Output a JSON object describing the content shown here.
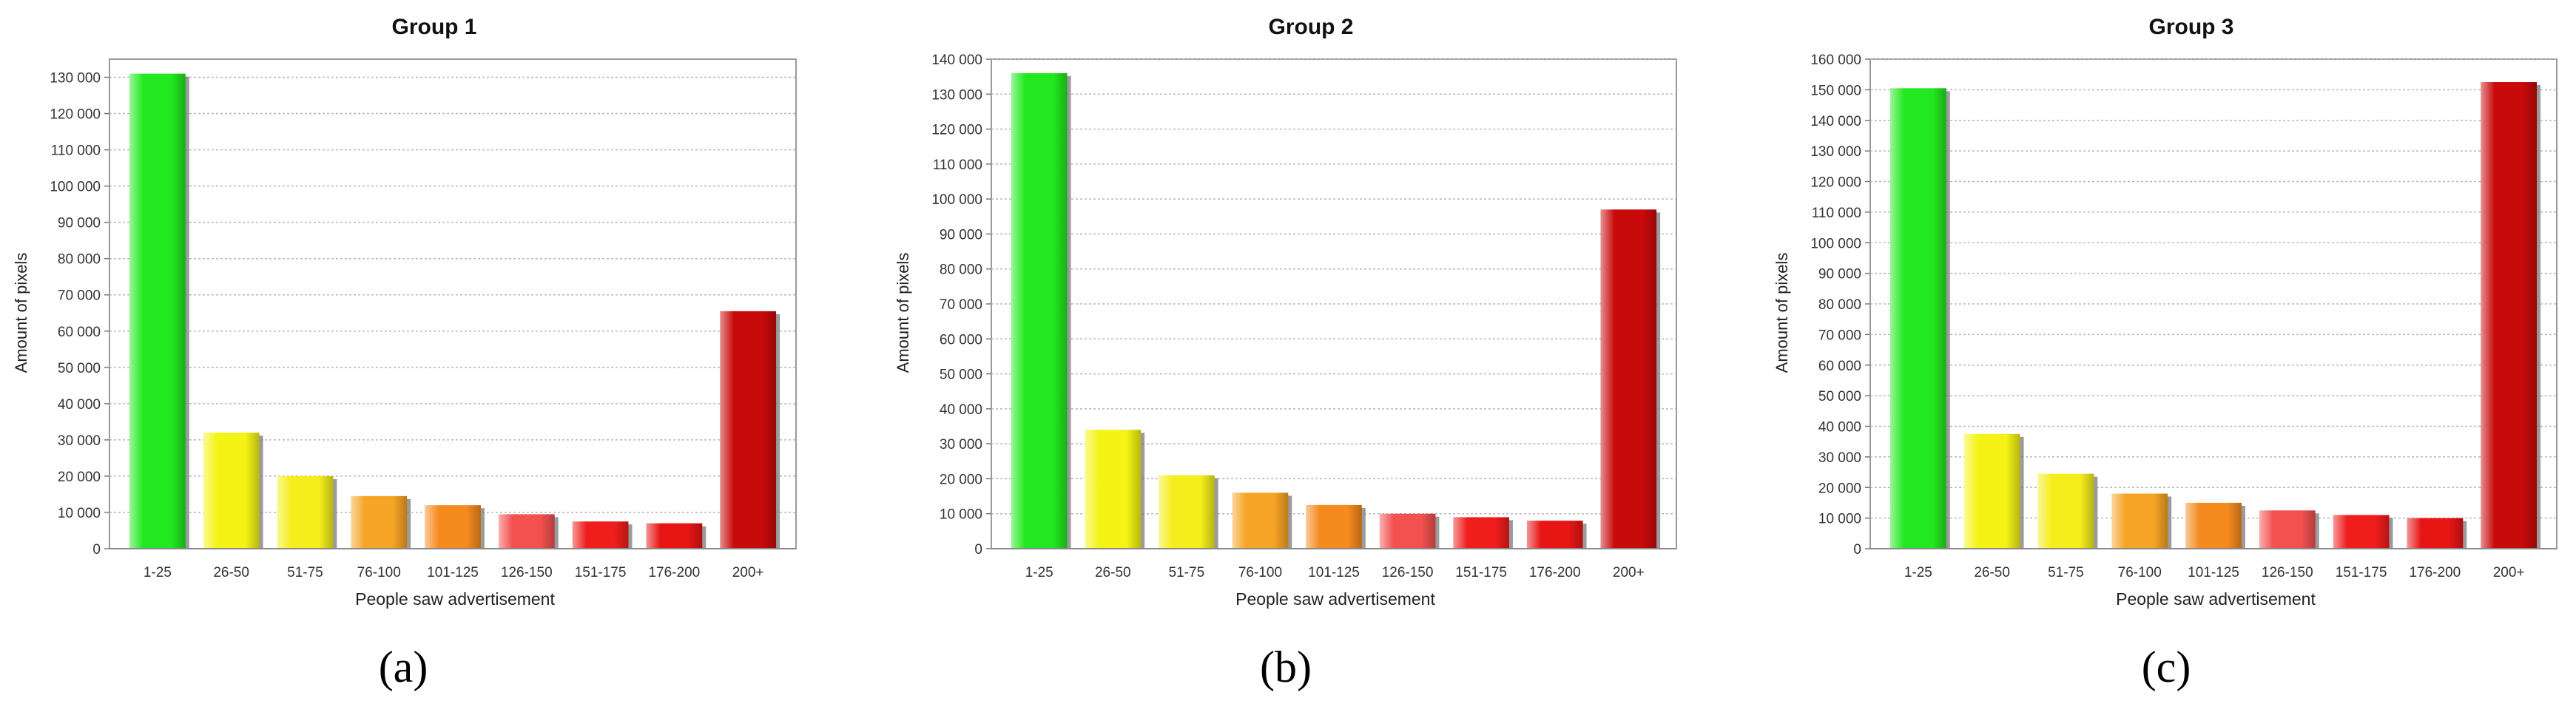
{
  "shared": {
    "xlabel": "People saw advertisement",
    "ylabel": "Amount of pixels",
    "categories": [
      "1-25",
      "26-50",
      "51-75",
      "76-100",
      "101-125",
      "126-150",
      "151-175",
      "176-200",
      "200+"
    ],
    "bar_colors": [
      "#22e81f",
      "#f5f315",
      "#f5ee1c",
      "#f6a425",
      "#f58a1f",
      "#f35050",
      "#f01d1d",
      "#e81515",
      "#c80a0a"
    ]
  },
  "chart_data": [
    {
      "type": "bar",
      "title": "Group 1",
      "caption": "(a)",
      "categories": [
        "1-25",
        "26-50",
        "51-75",
        "76-100",
        "101-125",
        "126-150",
        "151-175",
        "176-200",
        "200+"
      ],
      "values": [
        131000,
        32000,
        20000,
        14500,
        12000,
        9500,
        7500,
        7000,
        65500
      ],
      "ylim": [
        0,
        135000
      ],
      "yticks": [
        0,
        10000,
        20000,
        30000,
        40000,
        50000,
        60000,
        70000,
        80000,
        90000,
        100000,
        110000,
        120000,
        130000
      ],
      "ytick_labels": [
        "0",
        "10 000",
        "20 000",
        "30 000",
        "40 000",
        "50 000",
        "60 000",
        "70 000",
        "80 000",
        "90 000",
        "100 000",
        "110 000",
        "120 000",
        "130 000"
      ],
      "xlabel": "People saw advertisement",
      "ylabel": "Amount of pixels",
      "grid": true
    },
    {
      "type": "bar",
      "title": "Group 2",
      "caption": "(b)",
      "categories": [
        "1-25",
        "26-50",
        "51-75",
        "76-100",
        "101-125",
        "126-150",
        "151-175",
        "176-200",
        "200+"
      ],
      "values": [
        136000,
        34000,
        21000,
        16000,
        12500,
        10000,
        9000,
        8000,
        97000
      ],
      "ylim": [
        0,
        140000
      ],
      "yticks": [
        0,
        10000,
        20000,
        30000,
        40000,
        50000,
        60000,
        70000,
        80000,
        90000,
        100000,
        110000,
        120000,
        130000,
        140000
      ],
      "ytick_labels": [
        "0",
        "10 000",
        "20 000",
        "30 000",
        "40 000",
        "50 000",
        "60 000",
        "70 000",
        "80 000",
        "90 000",
        "100 000",
        "110 000",
        "120 000",
        "130 000",
        "140 000"
      ],
      "xlabel": "People saw advertisement",
      "ylabel": "Amount of pixels",
      "grid": true
    },
    {
      "type": "bar",
      "title": "Group 3",
      "caption": "(c)",
      "categories": [
        "1-25",
        "26-50",
        "51-75",
        "76-100",
        "101-125",
        "126-150",
        "151-175",
        "176-200",
        "200+"
      ],
      "values": [
        150500,
        37500,
        24500,
        18000,
        15000,
        12500,
        11000,
        10000,
        152500
      ],
      "ylim": [
        0,
        160000
      ],
      "yticks": [
        0,
        10000,
        20000,
        30000,
        40000,
        50000,
        60000,
        70000,
        80000,
        90000,
        100000,
        110000,
        120000,
        130000,
        140000,
        150000,
        160000
      ],
      "ytick_labels": [
        "0",
        "10 000",
        "20 000",
        "30 000",
        "40 000",
        "50 000",
        "60 000",
        "70 000",
        "80 000",
        "90 000",
        "100 000",
        "110 000",
        "120 000",
        "130 000",
        "140 000",
        "150 000",
        "160 000"
      ],
      "xlabel": "People saw advertisement",
      "ylabel": "Amount of pixels",
      "grid": true
    }
  ]
}
